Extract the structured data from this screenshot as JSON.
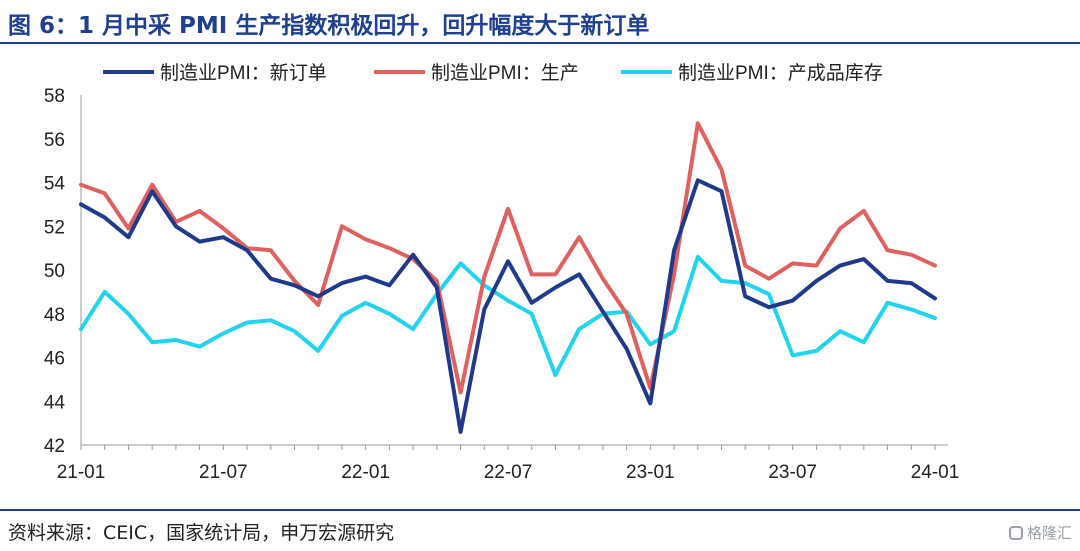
{
  "figure": {
    "title": "图 6：1 月中采 PMI 生产指数积极回升，回升幅度大于新订单",
    "source": "资料来源：CEIC，国家统计局，申万宏源研究",
    "watermark": "格隆汇"
  },
  "chart_data": {
    "type": "line",
    "title": "",
    "xlabel": "",
    "ylabel": "",
    "ylim": [
      42,
      58
    ],
    "yticks": [
      42,
      44,
      46,
      48,
      50,
      52,
      54,
      56,
      58
    ],
    "grid": false,
    "legend_position": "top",
    "x": [
      "21-01",
      "21-02",
      "21-03",
      "21-04",
      "21-05",
      "21-06",
      "21-07",
      "21-08",
      "21-09",
      "21-10",
      "21-11",
      "21-12",
      "22-01",
      "22-02",
      "22-03",
      "22-04",
      "22-05",
      "22-06",
      "22-07",
      "22-08",
      "22-09",
      "22-10",
      "22-11",
      "22-12",
      "23-01",
      "23-02",
      "23-03",
      "23-04",
      "23-05",
      "23-06",
      "23-07",
      "23-08",
      "23-09",
      "23-10",
      "23-11",
      "23-12",
      "24-01"
    ],
    "xtick_labels": [
      "21-01",
      "21-07",
      "22-01",
      "22-07",
      "23-01",
      "23-07",
      "24-01"
    ],
    "series": [
      {
        "name": "制造业PMI：新订单",
        "color": "#1f3a8a",
        "values": [
          53.0,
          52.4,
          51.5,
          53.6,
          52.0,
          51.3,
          51.5,
          50.9,
          49.6,
          49.3,
          48.8,
          49.4,
          49.7,
          49.3,
          50.7,
          49.2,
          42.6,
          48.2,
          50.4,
          48.5,
          49.2,
          49.8,
          48.1,
          46.4,
          43.9,
          50.9,
          54.1,
          53.6,
          48.8,
          48.3,
          48.6,
          49.5,
          50.2,
          50.5,
          49.5,
          49.4,
          48.7
        ]
      },
      {
        "name": "制造业PMI：生产",
        "color": "#e06060",
        "values": [
          53.9,
          53.5,
          51.9,
          53.9,
          52.2,
          52.7,
          51.9,
          51.0,
          50.9,
          49.5,
          48.4,
          52.0,
          51.4,
          51.0,
          50.5,
          49.5,
          44.4,
          49.7,
          52.8,
          49.8,
          49.8,
          51.5,
          49.6,
          48.0,
          44.6,
          49.8,
          56.7,
          54.6,
          50.2,
          49.6,
          50.3,
          50.2,
          51.9,
          52.7,
          50.9,
          50.7,
          50.2
        ]
      },
      {
        "name": "制造业PMI：产成品库存",
        "color": "#22d3ee",
        "values": [
          47.3,
          49.0,
          48.0,
          46.7,
          46.8,
          46.5,
          47.1,
          47.6,
          47.7,
          47.2,
          46.3,
          47.9,
          48.5,
          48.0,
          47.3,
          48.9,
          50.3,
          49.3,
          48.6,
          48.0,
          45.2,
          47.3,
          48.0,
          48.1,
          46.6,
          47.2,
          50.6,
          49.5,
          49.4,
          48.9,
          46.1,
          46.3,
          47.2,
          46.7,
          48.5,
          48.2,
          47.8
        ]
      }
    ]
  }
}
